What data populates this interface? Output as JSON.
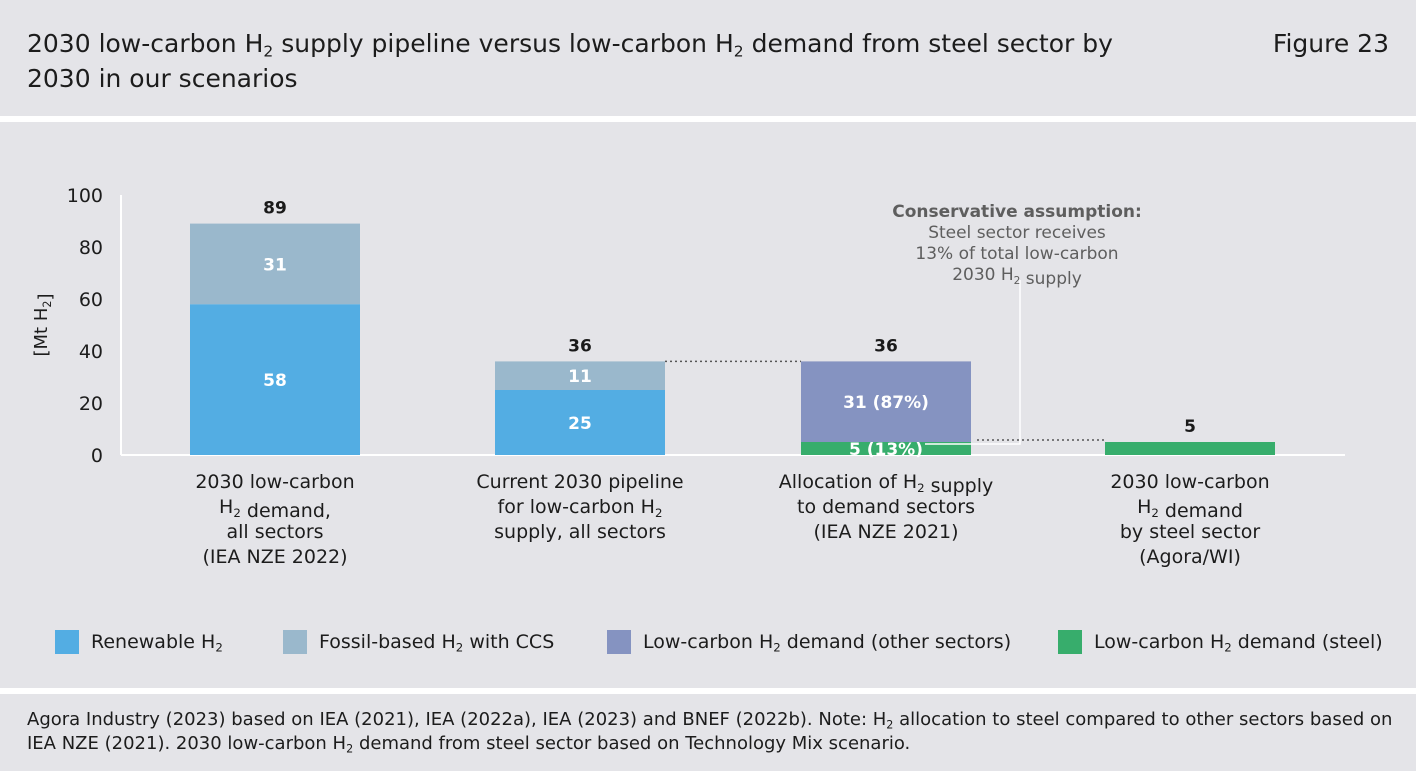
{
  "header": {
    "title_html": "2030 low-carbon H<sub>2</sub> supply pipeline versus low-carbon H<sub>2</sub> demand from steel sector by 2030 in our scenarios",
    "figure_label": "Figure 23"
  },
  "colors": {
    "renewable": "#53ade3",
    "fossil_ccs": "#9ab8cc",
    "other_sectors": "#8593c1",
    "steel": "#37ad6c",
    "background": "#e4e4e8"
  },
  "chart_data": {
    "type": "bar",
    "stacked": true,
    "ylabel_html": "[Mt H<sub>2</sub>]",
    "ylim": [
      0,
      100
    ],
    "yticks": [
      0,
      20,
      40,
      60,
      80,
      100
    ],
    "grid": false,
    "legend_position": "bottom",
    "categories": [
      "2030 low-carbon\nH<sub>2</sub> demand,\nall sectors\n(IEA NZE 2022)",
      "Current 2030 pipeline\nfor low-carbon H<sub>2</sub>\nsupply, all sectors",
      "Allocation of H<sub>2</sub> supply\nto demand sectors\n(IEA NZE 2021)",
      "2030 low-carbon\nH<sub>2</sub> demand\nby steel sector\n(Agora/WI)"
    ],
    "series": [
      {
        "name": "Renewable H<sub>2</sub>",
        "color_key": "renewable",
        "values": [
          58,
          25,
          0,
          0
        ],
        "labels": [
          "58",
          "25",
          "",
          ""
        ]
      },
      {
        "name": "Fossil-based H<sub>2</sub> with CCS",
        "color_key": "fossil_ccs",
        "values": [
          31,
          11,
          0,
          0
        ],
        "labels": [
          "31",
          "11",
          "",
          ""
        ]
      },
      {
        "name": "Low-carbon H<sub>2</sub> demand (steel)",
        "color_key": "steel",
        "values": [
          0,
          0,
          5,
          5
        ],
        "labels": [
          "",
          "",
          "5 (13%)",
          ""
        ]
      },
      {
        "name": "Low-carbon H<sub>2</sub> demand (other sectors)",
        "color_key": "other_sectors",
        "values": [
          0,
          0,
          31,
          0
        ],
        "labels": [
          "",
          "",
          "31 (87%)",
          ""
        ]
      }
    ],
    "legend_order": [
      0,
      1,
      3,
      2
    ],
    "totals": [
      "89",
      "36",
      "36",
      "5"
    ],
    "annotation": {
      "heading": "Conservative assumption:",
      "lines_html": [
        "Steel sector receives",
        "13% of total low-carbon",
        "2030 H<sub>2</sub> supply"
      ]
    }
  },
  "footer": {
    "source_html": "Agora Industry (2023) based on IEA (2021), IEA (2022a), IEA (2023) and BNEF (2022b). Note: H<sub>2</sub> allocation to steel compared to other sectors based on IEA NZE (2021). 2030 low-carbon H<sub>2</sub> demand from steel sector based on Technology Mix scenario."
  }
}
